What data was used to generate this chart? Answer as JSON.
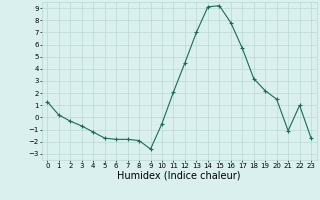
{
  "x": [
    0,
    1,
    2,
    3,
    4,
    5,
    6,
    7,
    8,
    9,
    10,
    11,
    12,
    13,
    14,
    15,
    16,
    17,
    18,
    19,
    20,
    21,
    22,
    23
  ],
  "y": [
    1.3,
    0.2,
    -0.3,
    -0.7,
    -1.2,
    -1.7,
    -1.8,
    -1.8,
    -1.9,
    -2.6,
    -0.5,
    2.1,
    4.5,
    7.0,
    9.1,
    9.2,
    7.8,
    5.7,
    3.2,
    2.2,
    1.5,
    -1.1,
    1.0,
    -1.7
  ],
  "line_color": "#1a6b5a",
  "marker": "+",
  "marker_size": 3,
  "marker_linewidth": 0.8,
  "bg_color": "#d9f0ee",
  "grid_color": "#b8d8d4",
  "xlabel": "Humidex (Indice chaleur)",
  "xlim": [
    -0.5,
    23.5
  ],
  "ylim": [
    -3.5,
    9.5
  ],
  "yticks": [
    -3,
    -2,
    -1,
    0,
    1,
    2,
    3,
    4,
    5,
    6,
    7,
    8,
    9
  ],
  "xticks": [
    0,
    1,
    2,
    3,
    4,
    5,
    6,
    7,
    8,
    9,
    10,
    11,
    12,
    13,
    14,
    15,
    16,
    17,
    18,
    19,
    20,
    21,
    22,
    23
  ],
  "tick_fontsize": 5.0,
  "xlabel_fontsize": 7.0,
  "line_width": 0.8
}
